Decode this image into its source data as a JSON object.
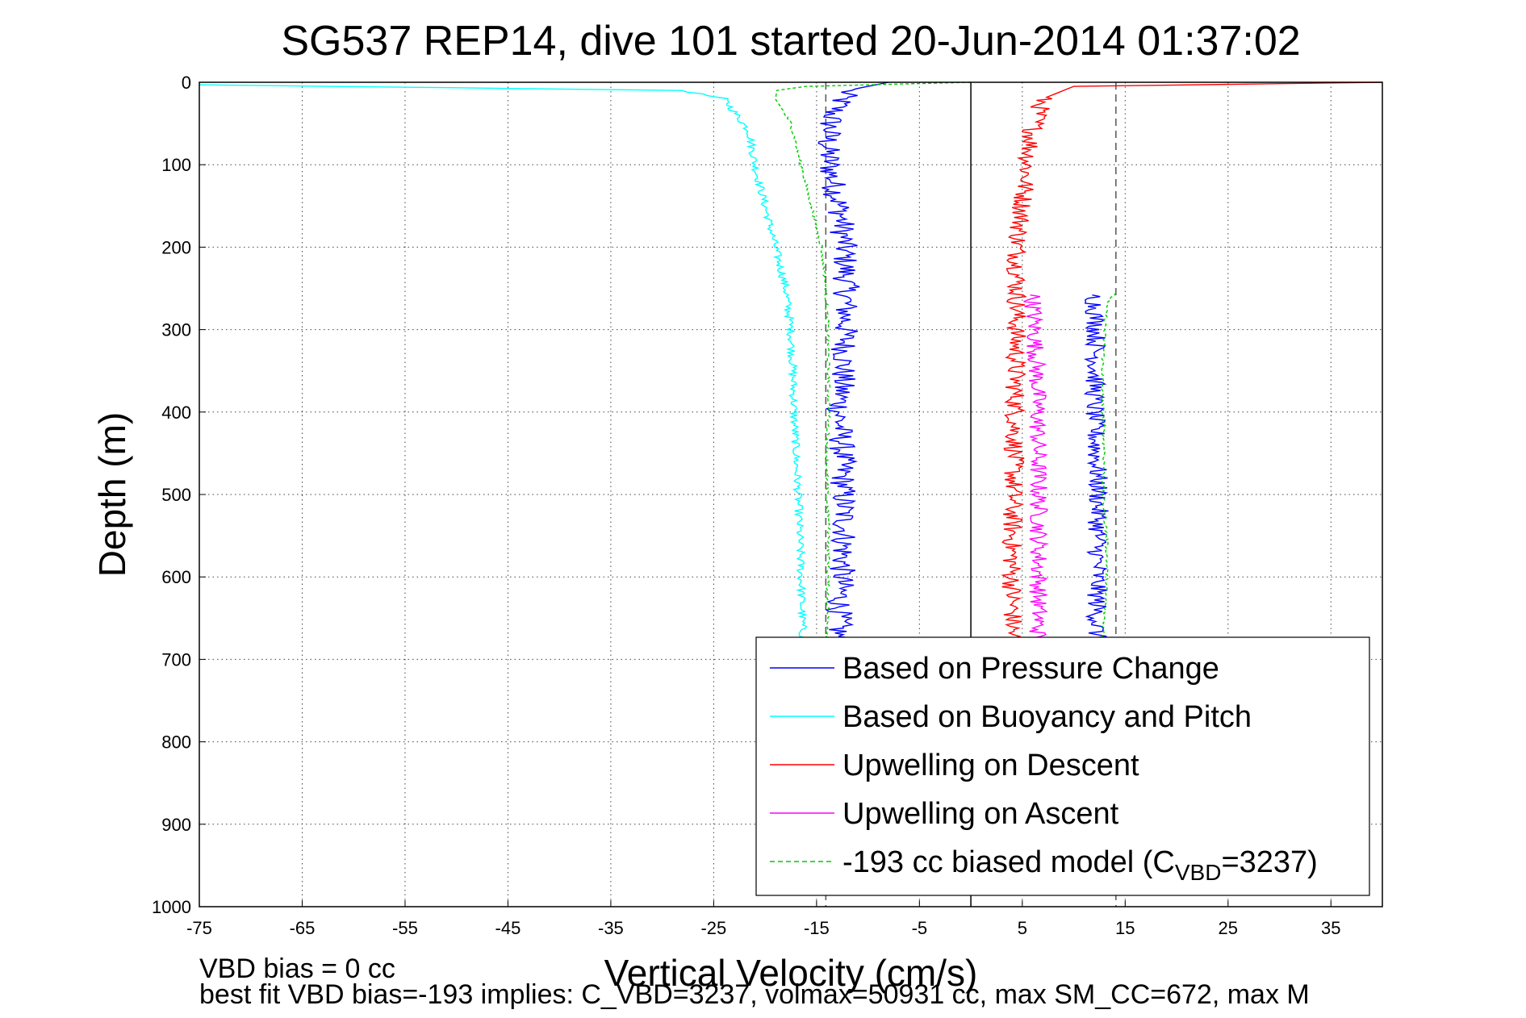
{
  "chart_data": {
    "type": "line",
    "title": "SG537 REP14, dive 101 started 20-Jun-2014 01:37:02",
    "xlabel": "Vertical Velocity (cm/s)",
    "ylabel": "Depth (m)",
    "xlim": [
      -75,
      40
    ],
    "ylim": [
      0,
      1000
    ],
    "y_reversed": true,
    "xticks": [
      -75,
      -65,
      -55,
      -45,
      -35,
      -25,
      -15,
      -5,
      5,
      15,
      25,
      35
    ],
    "yticks": [
      0,
      100,
      200,
      300,
      400,
      500,
      600,
      700,
      800,
      900,
      1000
    ],
    "grid": true,
    "legend_position": "lower-right",
    "reference_lines": [
      {
        "x": 0,
        "style": "solid",
        "color": "#000000"
      },
      {
        "x": -14.1,
        "style": "dashed",
        "color": "#555555"
      },
      {
        "x": 14.1,
        "style": "dashed",
        "color": "#555555"
      }
    ],
    "series": [
      {
        "name": "Based on Pressure Change",
        "color": "#0000ff",
        "style": "solid",
        "noise": 1.3,
        "x": [
          -8,
          -12,
          -13.5,
          -14,
          -13.4,
          -12.6,
          -12.3,
          -12.1,
          -12.2,
          -12.4,
          -12.8,
          -12.5,
          -12.4,
          -12.3,
          -12.8,
          -12.9
        ],
        "y": [
          0,
          10,
          40,
          80,
          120,
          160,
          200,
          250,
          300,
          350,
          400,
          450,
          500,
          550,
          650,
          690
        ]
      },
      {
        "name": "Based on Buoyancy and Pitch",
        "color": "#00ffff",
        "style": "solid",
        "noise": 0.4,
        "x": [
          -75,
          -28,
          -24,
          -21.5,
          -21,
          -20,
          -19,
          -18,
          -17.5,
          -17.3,
          -17.2,
          -17,
          -16.8,
          -16.5,
          -16.3
        ],
        "y": [
          3,
          10,
          20,
          60,
          100,
          150,
          200,
          250,
          300,
          350,
          400,
          450,
          500,
          600,
          690
        ]
      },
      {
        "name": "Upwelling on Descent",
        "color": "#ff0000",
        "style": "solid",
        "noise": 1.0,
        "x": [
          40,
          10,
          7,
          6,
          5.5,
          5,
          4.5,
          4.5,
          4.4,
          4.3,
          4.2,
          4.1,
          4.0,
          4.0,
          4.1
        ],
        "y": [
          0,
          5,
          20,
          60,
          100,
          150,
          200,
          250,
          300,
          400,
          450,
          500,
          550,
          600,
          690
        ]
      },
      {
        "name": "Upwelling on Ascent",
        "color": "#ff00ff",
        "style": "solid",
        "noise": 0.9,
        "x": [
          6,
          6.2,
          6.4,
          6.5,
          6.5,
          6.6,
          6.6,
          6.5
        ],
        "y": [
          258,
          300,
          350,
          400,
          450,
          500,
          600,
          690
        ]
      },
      {
        "name": "Based on Pressure Change",
        "color": "#0000ff",
        "style": "solid",
        "noise": 1.0,
        "x": [
          12,
          12.2,
          12.1,
          12.0,
          12.2,
          12.4,
          12.3,
          12.2
        ],
        "y": [
          258,
          300,
          350,
          400,
          450,
          500,
          600,
          690
        ]
      },
      {
        "name": "-193 cc biased model (C_VBD=3237)",
        "color": "#00cc00",
        "style": "dashed",
        "noise": 0.15,
        "x": [
          0,
          -16,
          -19,
          -19,
          -17.5,
          -16.5,
          -14.5,
          -14.1,
          -13.9,
          -13.8,
          -14,
          -14,
          -13.8,
          -13.9,
          -13.9
        ],
        "y": [
          0,
          5,
          10,
          20,
          50,
          100,
          200,
          250,
          300,
          400,
          450,
          500,
          550,
          600,
          690
        ]
      },
      {
        "name": "-193 cc biased model (C_VBD=3237)",
        "color": "#00cc00",
        "style": "dashed",
        "noise": 0.15,
        "x": [
          14,
          13.2,
          13,
          12.8,
          12.8,
          13,
          12.8,
          13.2,
          13.2,
          12.8
        ],
        "y": [
          255,
          270,
          300,
          350,
          400,
          450,
          500,
          550,
          600,
          690
        ]
      }
    ],
    "legend": [
      {
        "label": "Based on Pressure Change",
        "color": "#0000ff",
        "style": "solid"
      },
      {
        "label": "Based on Buoyancy and Pitch",
        "color": "#00ffff",
        "style": "solid"
      },
      {
        "label": "Upwelling on Descent",
        "color": "#ff0000",
        "style": "solid"
      },
      {
        "label": "Upwelling on Ascent",
        "color": "#ff00ff",
        "style": "solid"
      },
      {
        "label": "-193 cc biased model (C",
        "sub": "VBD",
        "suffix": "=3237)",
        "color": "#00cc00",
        "style": "dashed"
      }
    ],
    "annotations": [
      "VBD bias = 0 cc",
      "best fit VBD bias=-193 implies: C_VBD=3237, volmax=50931 cc, max SM_CC=672, max M"
    ]
  }
}
